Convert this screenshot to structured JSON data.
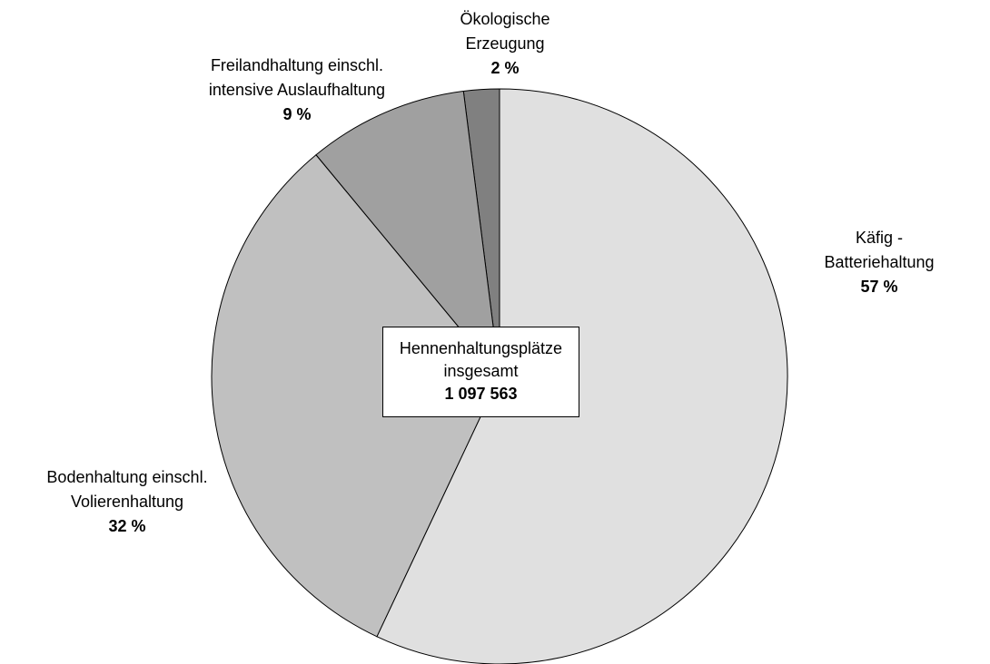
{
  "chart_data": {
    "type": "pie",
    "categories": [
      "Käfig - Batteriehaltung",
      "Bodenhaltung einschl.\nVolierenhaltung",
      "Freilandhaltung einschl.\nintensive Auslaufhaltung",
      "Ökologische\nErzeugung"
    ],
    "values": [
      57,
      32,
      9,
      2
    ],
    "value_labels": [
      "57 %",
      "32 %",
      "9 %",
      "2 %"
    ],
    "colors": [
      "#e0e0e0",
      "#c0c0c0",
      "#a0a0a0",
      "#808080"
    ],
    "center_label": "Hennenhaltungsplätze\ninsgesamt",
    "center_total": "1 097 563"
  }
}
